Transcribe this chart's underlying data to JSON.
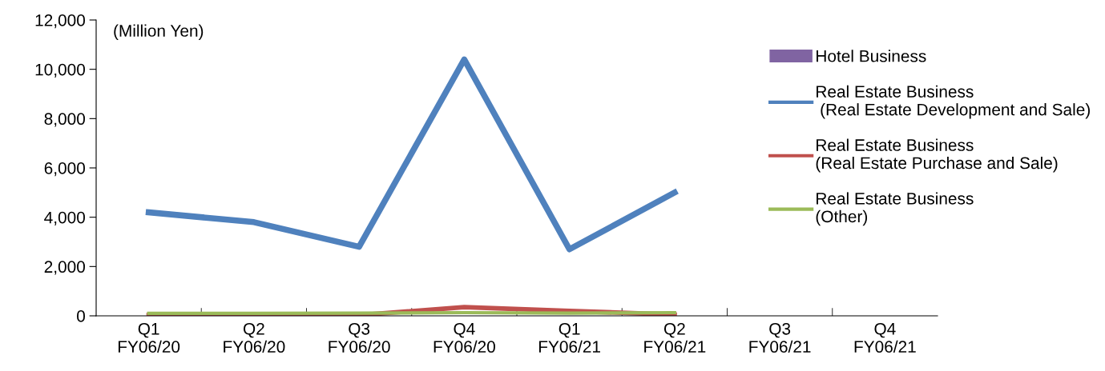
{
  "chart_data": {
    "type": "line",
    "categories": [
      "Q1\nFY06/20",
      "Q2\nFY06/20",
      "Q3\nFY06/20",
      "Q4\nFY06/20",
      "Q1\nFY06/21",
      "Q2\nFY06/21",
      "Q3\nFY06/21",
      "Q4\nFY06/21"
    ],
    "series": [
      {
        "name": "Hotel Business",
        "type": "bar",
        "color": "#8064a2",
        "values": [
          0,
          0,
          0,
          0,
          0,
          0,
          null,
          null
        ]
      },
      {
        "name": "Real Estate Business\n (Real Estate Development and Sale)",
        "color": "#4f81bd",
        "values": [
          4200,
          3800,
          2800,
          10400,
          2700,
          5000,
          null,
          null
        ]
      },
      {
        "name": "Real Estate Business\n(Real Estate Purchase and Sale)",
        "color": "#c0504d",
        "values": [
          30,
          20,
          30,
          350,
          200,
          50,
          null,
          null
        ]
      },
      {
        "name": "Real Estate Business\n(Other)",
        "color": "#9bbb59",
        "values": [
          100,
          100,
          110,
          130,
          110,
          130,
          null,
          null
        ]
      }
    ],
    "ylim": [
      0,
      12000
    ],
    "yticks": [
      {
        "value": 0,
        "label": "0"
      },
      {
        "value": 2000,
        "label": "2,000"
      },
      {
        "value": 4000,
        "label": "4,000"
      },
      {
        "value": 6000,
        "label": "6,000"
      },
      {
        "value": 8000,
        "label": "8,000"
      },
      {
        "value": 10000,
        "label": "10,000"
      },
      {
        "value": 12000,
        "label": "12,000"
      }
    ],
    "annotations": [
      "(Million Yen)"
    ],
    "grid": false,
    "legend": "top right",
    "marker": "none",
    "line_style": "solid"
  }
}
